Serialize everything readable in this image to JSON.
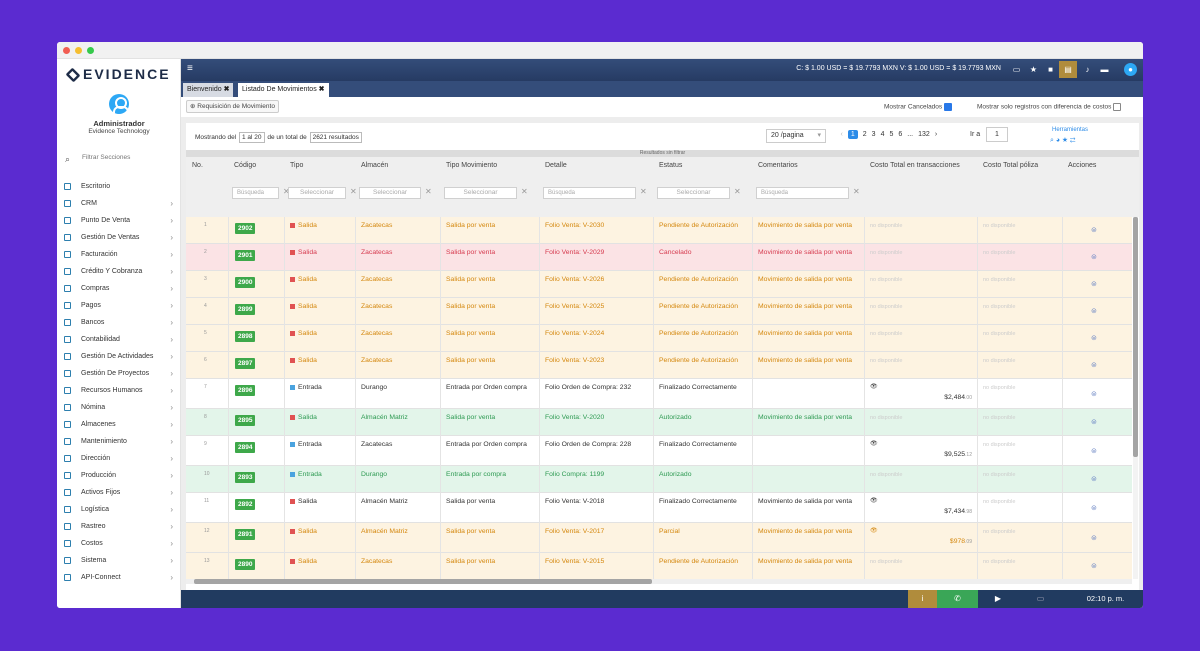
{
  "window": {
    "controls": [
      "close",
      "minimize",
      "maximize"
    ]
  },
  "brand": {
    "logo_text": "EVIDENCE"
  },
  "user": {
    "name": "Administrador",
    "company": "Evidence Technology"
  },
  "sidebar": {
    "search_placeholder": "Filtrar Secciones",
    "items": [
      {
        "label": "Escritorio",
        "icon": "desktop-icon",
        "chevron": false
      },
      {
        "label": "CRM",
        "icon": "crm-icon",
        "chevron": true
      },
      {
        "label": "Punto De Venta",
        "icon": "pos-icon",
        "chevron": true
      },
      {
        "label": "Gestión De Ventas",
        "icon": "sales-icon",
        "chevron": true
      },
      {
        "label": "Facturación",
        "icon": "invoice-icon",
        "chevron": true
      },
      {
        "label": "Crédito Y Cobranza",
        "icon": "credit-icon",
        "chevron": true
      },
      {
        "label": "Compras",
        "icon": "purchases-icon",
        "chevron": true
      },
      {
        "label": "Pagos",
        "icon": "payments-icon",
        "chevron": true
      },
      {
        "label": "Bancos",
        "icon": "bank-icon",
        "chevron": true
      },
      {
        "label": "Contabilidad",
        "icon": "accounting-icon",
        "chevron": true
      },
      {
        "label": "Gestión De Actividades",
        "icon": "tasks-icon",
        "chevron": true
      },
      {
        "label": "Gestión De Proyectos",
        "icon": "projects-icon",
        "chevron": true
      },
      {
        "label": "Recursos Humanos",
        "icon": "hr-icon",
        "chevron": true
      },
      {
        "label": "Nómina",
        "icon": "payroll-icon",
        "chevron": true
      },
      {
        "label": "Almacenes",
        "icon": "warehouse-icon",
        "chevron": true
      },
      {
        "label": "Mantenimiento",
        "icon": "maintenance-icon",
        "chevron": true
      },
      {
        "label": "Dirección",
        "icon": "direction-icon",
        "chevron": true
      },
      {
        "label": "Producción",
        "icon": "production-icon",
        "chevron": true
      },
      {
        "label": "Activos Fijos",
        "icon": "assets-icon",
        "chevron": true
      },
      {
        "label": "Logística",
        "icon": "logistics-icon",
        "chevron": true
      },
      {
        "label": "Rastreo",
        "icon": "tracking-icon",
        "chevron": true
      },
      {
        "label": "Costos",
        "icon": "costs-icon",
        "chevron": true
      },
      {
        "label": "Sistema",
        "icon": "system-icon",
        "chevron": true
      },
      {
        "label": "API-Connect",
        "icon": "api-icon",
        "chevron": true
      }
    ]
  },
  "topbar": {
    "exchange_rate": "C: $ 1.00 USD = $ 19.7793 MXN  V: $ 1.00 USD = $ 19.7793 MXN"
  },
  "tabs": [
    {
      "label": "Bienvenido",
      "close": "✖"
    },
    {
      "label": "Listado De Movimientos",
      "close": "✖"
    }
  ],
  "toolbar": {
    "requisition_button": "Requisición de Movimiento",
    "show_cancelled": "Mostrar Cancelados",
    "only_cost_diff": "Mostrar solo registros con diferencia de costos"
  },
  "list": {
    "showing_prefix": "Mostrando del",
    "showing_range": "1 al 20",
    "showing_mid": "de un total de",
    "showing_total": "2621 resultados",
    "per_page": "20 /pagina",
    "pages": [
      "1",
      "2",
      "3",
      "4",
      "5",
      "6",
      "...",
      "132"
    ],
    "goto_label": "Ir a",
    "goto_value": "1",
    "tools_label": "Herramientas",
    "filter_note": "Resultados sin filtrar",
    "columns": [
      "No.",
      "Código",
      "Tipo",
      "Almacén",
      "Tipo Movimiento",
      "Detalle",
      "Estatus",
      "Comentarios",
      "Costo Total en transacciones",
      "Costo Total póliza",
      "Acciones"
    ],
    "search_placeholder": "Búsqueda",
    "select_placeholder": "Seleccionar",
    "not_available": "no disponible",
    "colors": {
      "salida": "#e05252",
      "entrada": "#4aa3df",
      "code": "#3ea84a",
      "warning_bg": "#fdf3e1",
      "danger_bg": "#fbe3e5",
      "success_bg": "#e3f5ea"
    },
    "rows": [
      {
        "no": "1",
        "code": "2902",
        "type": "Salida",
        "warehouse": "Zacatecas",
        "movement": "Salida por venta",
        "detail": "Folio Venta: V-2030",
        "status": "Pendiente de Autorización",
        "comment": "Movimiento de salida por venta",
        "cost": "",
        "cost_dec": "",
        "style": "warning"
      },
      {
        "no": "2",
        "code": "2901",
        "type": "Salida",
        "warehouse": "Zacatecas",
        "movement": "Salida por venta",
        "detail": "Folio Venta: V-2029",
        "status": "Cancelado",
        "comment": "Movimiento de salida por venta",
        "cost": "",
        "cost_dec": "",
        "style": "danger"
      },
      {
        "no": "3",
        "code": "2900",
        "type": "Salida",
        "warehouse": "Zacatecas",
        "movement": "Salida por venta",
        "detail": "Folio Venta: V-2026",
        "status": "Pendiente de Autorización",
        "comment": "Movimiento de salida por venta",
        "cost": "",
        "cost_dec": "",
        "style": "warning"
      },
      {
        "no": "4",
        "code": "2899",
        "type": "Salida",
        "warehouse": "Zacatecas",
        "movement": "Salida por venta",
        "detail": "Folio Venta: V-2025",
        "status": "Pendiente de Autorización",
        "comment": "Movimiento de salida por venta",
        "cost": "",
        "cost_dec": "",
        "style": "warning"
      },
      {
        "no": "5",
        "code": "2898",
        "type": "Salida",
        "warehouse": "Zacatecas",
        "movement": "Salida por venta",
        "detail": "Folio Venta: V-2024",
        "status": "Pendiente de Autorización",
        "comment": "Movimiento de salida por venta",
        "cost": "",
        "cost_dec": "",
        "style": "warning"
      },
      {
        "no": "6",
        "code": "2897",
        "type": "Salida",
        "warehouse": "Zacatecas",
        "movement": "Salida por venta",
        "detail": "Folio Venta: V-2023",
        "status": "Pendiente de Autorización",
        "comment": "Movimiento de salida por venta",
        "cost": "",
        "cost_dec": "",
        "style": "warning"
      },
      {
        "no": "7",
        "code": "2896",
        "type": "Entrada",
        "warehouse": "Durango",
        "movement": "Entrada por Orden compra",
        "detail": "Folio Orden de Compra: 232",
        "status": "Finalizado Correctamente",
        "comment": "",
        "cost": "$2,484",
        "cost_dec": ".00",
        "style": "default"
      },
      {
        "no": "8",
        "code": "2895",
        "type": "Salida",
        "warehouse": "Almacén Matriz",
        "movement": "Salida por venta",
        "detail": "Folio Venta: V-2020",
        "status": "Autorizado",
        "comment": "Movimiento de salida por venta",
        "cost": "",
        "cost_dec": "",
        "style": "success"
      },
      {
        "no": "9",
        "code": "2894",
        "type": "Entrada",
        "warehouse": "Zacatecas",
        "movement": "Entrada por Orden compra",
        "detail": "Folio Orden de Compra: 228",
        "status": "Finalizado Correctamente",
        "comment": "",
        "cost": "$9,525",
        "cost_dec": ".12",
        "style": "default"
      },
      {
        "no": "10",
        "code": "2893",
        "type": "Entrada",
        "warehouse": "Durango",
        "movement": "Entrada por compra",
        "detail": "Folio Compra: 1199",
        "status": "Autorizado",
        "comment": "",
        "cost": "",
        "cost_dec": "",
        "style": "success"
      },
      {
        "no": "11",
        "code": "2892",
        "type": "Salida",
        "warehouse": "Almacén Matriz",
        "movement": "Salida por venta",
        "detail": "Folio Venta: V-2018",
        "status": "Finalizado Correctamente",
        "comment": "Movimiento de salida por venta",
        "cost": "$7,434",
        "cost_dec": ".98",
        "style": "default"
      },
      {
        "no": "12",
        "code": "2891",
        "type": "Salida",
        "warehouse": "Almacén Matriz",
        "movement": "Salida por venta",
        "detail": "Folio Venta: V-2017",
        "status": "Parcial",
        "comment": "Movimiento de salida por venta",
        "cost": "$978",
        "cost_dec": ".09",
        "style": "warning"
      },
      {
        "no": "13",
        "code": "2890",
        "type": "Salida",
        "warehouse": "Zacatecas",
        "movement": "Salida por venta",
        "detail": "Folio Venta: V-2015",
        "status": "Pendiente de Autorización",
        "comment": "Movimiento de salida por venta",
        "cost": "",
        "cost_dec": "",
        "style": "warning"
      }
    ]
  },
  "bottombar": {
    "clock": "02:10 p. m."
  }
}
